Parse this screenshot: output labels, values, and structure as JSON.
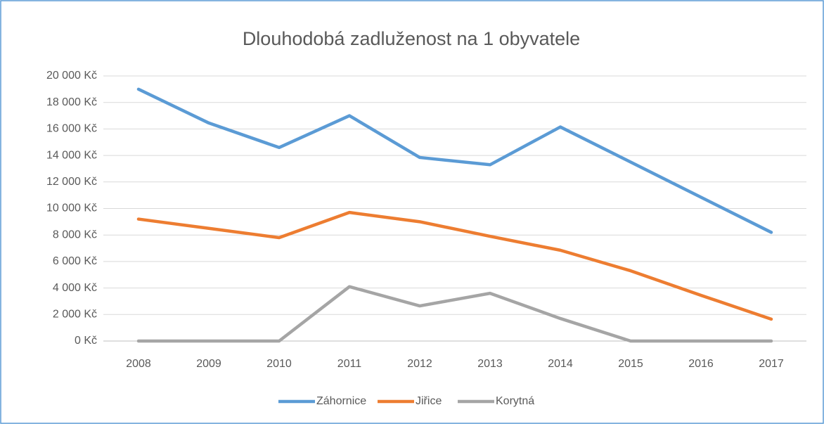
{
  "chart_data": {
    "type": "line",
    "title": "Dlouhodobá zadluženost na 1 obyvatele",
    "categories": [
      "2008",
      "2009",
      "2010",
      "2011",
      "2012",
      "2013",
      "2014",
      "2015",
      "2016",
      "2017"
    ],
    "series": [
      {
        "name": "Záhornice",
        "color": "#5b9bd5",
        "values": [
          19000,
          16450,
          14600,
          17000,
          13850,
          13300,
          16150,
          13500,
          10850,
          8200
        ]
      },
      {
        "name": "Jiřice",
        "color": "#ed7d31",
        "values": [
          9200,
          8500,
          7800,
          9700,
          9000,
          7900,
          6850,
          5300,
          3450,
          1650
        ]
      },
      {
        "name": "Korytná",
        "color": "#a5a5a5",
        "values": [
          0,
          0,
          0,
          4100,
          2650,
          3600,
          1700,
          0,
          0,
          0
        ]
      }
    ],
    "ylim": [
      0,
      20000
    ],
    "yticks": [
      {
        "value": 0,
        "label": "0 Kč"
      },
      {
        "value": 2000,
        "label": "2 000 Kč"
      },
      {
        "value": 4000,
        "label": "4 000 Kč"
      },
      {
        "value": 6000,
        "label": "6 000 Kč"
      },
      {
        "value": 8000,
        "label": "8 000 Kč"
      },
      {
        "value": 10000,
        "label": "10 000 Kč"
      },
      {
        "value": 12000,
        "label": "12 000 Kč"
      },
      {
        "value": 14000,
        "label": "14 000 Kč"
      },
      {
        "value": 16000,
        "label": "16 000 Kč"
      },
      {
        "value": 18000,
        "label": "18 000 Kč"
      },
      {
        "value": 20000,
        "label": "20 000 Kč"
      }
    ],
    "grid": true,
    "legend": "bottom"
  }
}
